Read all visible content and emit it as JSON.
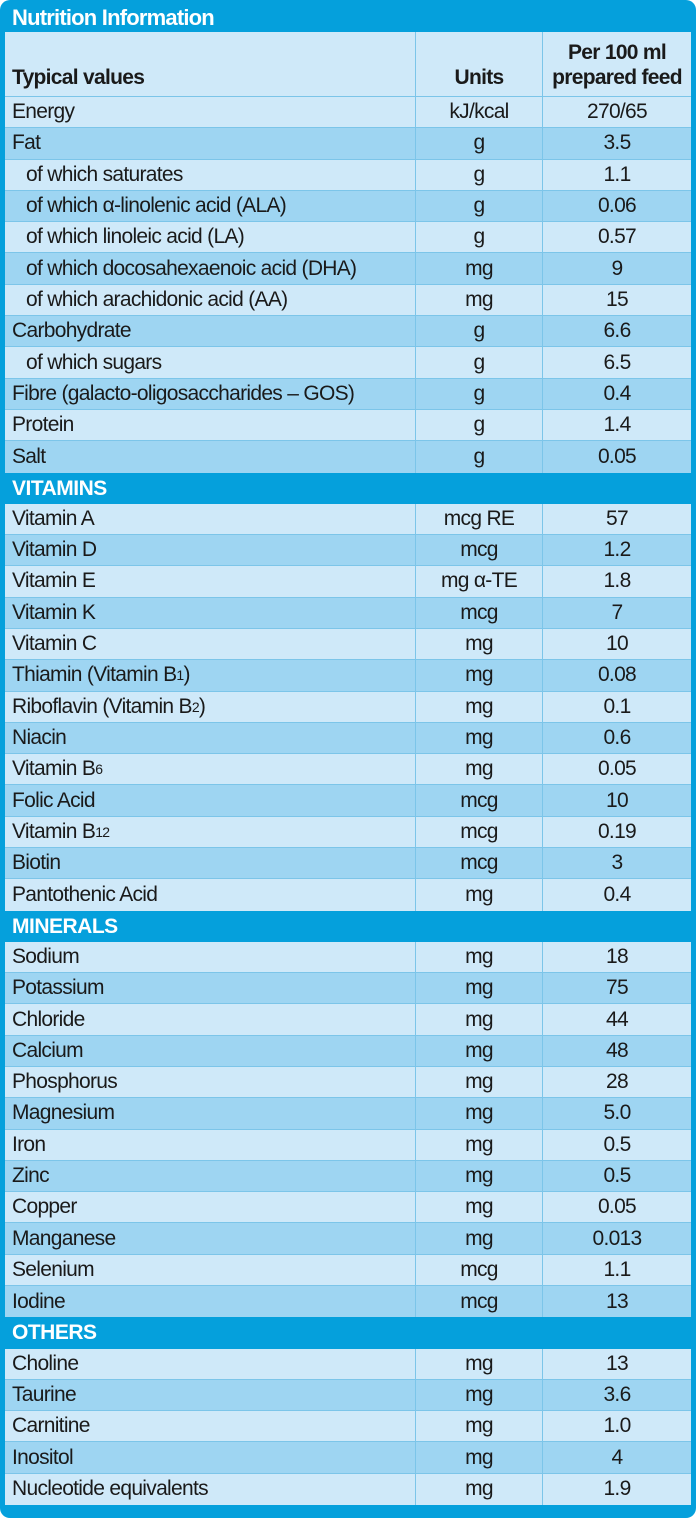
{
  "title": "Nutrition Information",
  "headers": {
    "typical": "Typical values",
    "units": "Units",
    "per1": "Per 100 ml",
    "per2": "prepared feed"
  },
  "main_rows": [
    {
      "name": "Energy",
      "unit": "kJ/kcal",
      "value": "270/65",
      "indent": false
    },
    {
      "name": "Fat",
      "unit": "g",
      "value": "3.5",
      "indent": false
    },
    {
      "name": "of which saturates",
      "unit": "g",
      "value": "1.1",
      "indent": true
    },
    {
      "name": "of which α-linolenic acid (ALA)",
      "unit": "g",
      "value": "0.06",
      "indent": true
    },
    {
      "name": "of which linoleic acid (LA)",
      "unit": "g",
      "value": "0.57",
      "indent": true
    },
    {
      "name": "of which docosahexaenoic acid (DHA)",
      "unit": "mg",
      "value": "9",
      "indent": true
    },
    {
      "name": "of which arachidonic acid (AA)",
      "unit": "mg",
      "value": "15",
      "indent": true
    },
    {
      "name": "Carbohydrate",
      "unit": "g",
      "value": "6.6",
      "indent": false
    },
    {
      "name": "of which sugars",
      "unit": "g",
      "value": "6.5",
      "indent": true
    },
    {
      "name": "Fibre (galacto-oligosaccharides – GOS)",
      "unit": "g",
      "value": "0.4",
      "indent": false
    },
    {
      "name": "Protein",
      "unit": "g",
      "value": "1.4",
      "indent": false
    },
    {
      "name": "Salt",
      "unit": "g",
      "value": "0.05",
      "indent": false
    }
  ],
  "vitamins": {
    "label": "VITAMINS",
    "rows": [
      {
        "name": "Vitamin A",
        "sub": "",
        "suffix": "",
        "unit": "mcg RE",
        "value": "57"
      },
      {
        "name": "Vitamin D",
        "sub": "",
        "suffix": "",
        "unit": "mcg",
        "value": "1.2"
      },
      {
        "name": "Vitamin E",
        "sub": "",
        "suffix": "",
        "unit": "mg α-TE",
        "value": "1.8"
      },
      {
        "name": "Vitamin K",
        "sub": "",
        "suffix": "",
        "unit": "mcg",
        "value": "7"
      },
      {
        "name": "Vitamin C",
        "sub": "",
        "suffix": "",
        "unit": "mg",
        "value": "10"
      },
      {
        "name": "Thiamin (Vitamin B",
        "sub": "1",
        "suffix": ")",
        "unit": "mg",
        "value": "0.08"
      },
      {
        "name": "Riboflavin (Vitamin B",
        "sub": "2",
        "suffix": ")",
        "unit": "mg",
        "value": "0.1"
      },
      {
        "name": "Niacin",
        "sub": "",
        "suffix": "",
        "unit": "mg",
        "value": "0.6"
      },
      {
        "name": "Vitamin B",
        "sub": "6",
        "suffix": "",
        "unit": "mg",
        "value": "0.05"
      },
      {
        "name": "Folic Acid",
        "sub": "",
        "suffix": "",
        "unit": "mcg",
        "value": "10"
      },
      {
        "name": "Vitamin B",
        "sub": "12",
        "suffix": "",
        "unit": "mcg",
        "value": "0.19"
      },
      {
        "name": "Biotin",
        "sub": "",
        "suffix": "",
        "unit": "mcg",
        "value": "3"
      },
      {
        "name": "Pantothenic Acid",
        "sub": "",
        "suffix": "",
        "unit": "mg",
        "value": "0.4"
      }
    ]
  },
  "minerals": {
    "label": "MINERALS",
    "rows": [
      {
        "name": "Sodium",
        "unit": "mg",
        "value": "18"
      },
      {
        "name": "Potassium",
        "unit": "mg",
        "value": "75"
      },
      {
        "name": "Chloride",
        "unit": "mg",
        "value": "44"
      },
      {
        "name": "Calcium",
        "unit": "mg",
        "value": "48"
      },
      {
        "name": "Phosphorus",
        "unit": "mg",
        "value": "28"
      },
      {
        "name": "Magnesium",
        "unit": "mg",
        "value": "5.0"
      },
      {
        "name": "Iron",
        "unit": "mg",
        "value": "0.5"
      },
      {
        "name": "Zinc",
        "unit": "mg",
        "value": "0.5"
      },
      {
        "name": "Copper",
        "unit": "mg",
        "value": "0.05"
      },
      {
        "name": "Manganese",
        "unit": "mg",
        "value": "0.013"
      },
      {
        "name": "Selenium",
        "unit": "mcg",
        "value": "1.1"
      },
      {
        "name": "Iodine",
        "unit": "mcg",
        "value": "13"
      }
    ]
  },
  "others": {
    "label": "OTHERS",
    "rows": [
      {
        "name": "Choline",
        "unit": "mg",
        "value": "13"
      },
      {
        "name": "Taurine",
        "unit": "mg",
        "value": "3.6"
      },
      {
        "name": "Carnitine",
        "unit": "mg",
        "value": "1.0"
      },
      {
        "name": "Inositol",
        "unit": "mg",
        "value": "4"
      },
      {
        "name": "Nucleotide equivalents",
        "unit": "mg",
        "value": "1.9"
      }
    ]
  },
  "colors": {
    "accent": "#05a0dc",
    "row_light": "#cfe9f9",
    "row_mid": "#9ed5f2"
  }
}
